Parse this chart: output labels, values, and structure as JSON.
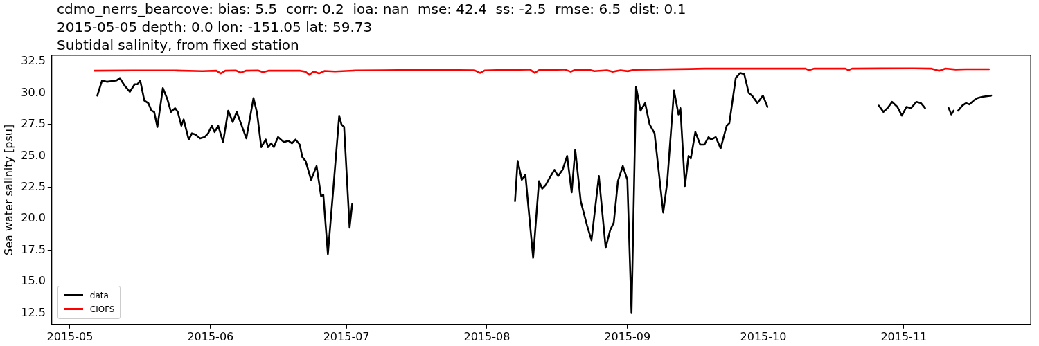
{
  "chart_data": {
    "type": "line",
    "title": "cdmo_nerrs_bearcove: bias: 5.5  corr: 0.2  ioa: nan  mse: 42.4  ss: -2.5  rmse: 6.5  dist: 0.1\n2015-05-05 depth: 0.0 lon: -151.05 lat: 59.73\nSubtidal salinity, from fixed station",
    "ylabel": "Sea water salinity [psu]",
    "xlim": [
      "2015-04-27",
      "2015-11-29"
    ],
    "xticks": [
      {
        "value": "2015-05-01",
        "label": "2015-05"
      },
      {
        "value": "2015-06-01",
        "label": "2015-06"
      },
      {
        "value": "2015-07-01",
        "label": "2015-07"
      },
      {
        "value": "2015-08-01",
        "label": "2015-08"
      },
      {
        "value": "2015-09-01",
        "label": "2015-09"
      },
      {
        "value": "2015-10-01",
        "label": "2015-10"
      },
      {
        "value": "2015-11-01",
        "label": "2015-11"
      }
    ],
    "ylim": [
      11.6,
      33.0
    ],
    "yticks": [
      12.5,
      {
        "value": 15,
        "label": "15.0"
      },
      17.5,
      {
        "value": 20,
        "label": "20.0"
      },
      22.5,
      {
        "value": 25,
        "label": "25.0"
      },
      27.5,
      {
        "value": 30,
        "label": "30.0"
      },
      32.5
    ],
    "grid": false,
    "legend": "bottom left",
    "line_style": "solid",
    "series": [
      {
        "name": "data",
        "color": "#000000",
        "x": [
          "2015-05-07T01:00",
          "2015-05-08T02:00",
          "2015-05-09T05:00",
          "2015-05-11T07:00",
          "2015-05-12T00:00",
          "2015-05-13T01:00",
          "2015-05-14T05:00",
          "2015-05-15T07:00",
          "2015-05-15T22:00",
          "2015-05-16T12:00",
          "2015-05-17T10:00",
          "2015-05-18T07:00",
          "2015-05-19T00:00",
          "2015-05-19T14:00",
          "2015-05-20T07:00",
          "2015-05-21T12:00",
          "2015-05-22T12:00",
          "2015-05-23T07:00",
          "2015-05-24T05:00",
          "2015-05-24T19:00",
          "2015-05-25T14:00",
          "2015-05-26T02:00",
          "2015-05-27T05:00",
          "2015-05-27T22:00",
          "2015-05-28T17:00",
          "2015-05-29T17:00",
          "2015-05-30T17:00",
          "2015-05-31T12:00",
          "2015-06-01T07:00",
          "2015-06-01T22:00",
          "2015-06-02T17:00",
          "2015-06-03T19:00",
          "2015-06-04T22:00",
          "2015-06-05T22:00",
          "2015-06-06T19:00",
          "2015-06-07T17:00",
          "2015-06-08T22:00",
          "2015-06-10T12:00",
          "2015-06-11T07:00",
          "2015-06-12T05:00",
          "2015-06-13T05:00",
          "2015-06-13T17:00",
          "2015-06-14T10:00",
          "2015-06-15T00:00",
          "2015-06-15T22:00",
          "2015-06-17T05:00",
          "2015-06-18T05:00",
          "2015-06-19T00:00",
          "2015-06-19T19:00",
          "2015-06-20T17:00",
          "2015-06-21T07:00",
          "2015-06-22T00:00",
          "2015-06-23T05:00",
          "2015-06-24T10:00",
          "2015-06-25T10:00",
          "2015-06-25T22:00",
          "2015-06-26T22:00",
          "2015-06-28T05:00",
          "2015-06-29T10:00",
          "2015-06-29T22:00",
          "2015-06-30T12:00",
          "2015-07-01T17:00",
          "2015-07-02T07:00",
          "2015-07-20T00:00",
          "2015-08-07T05:00",
          "2015-08-07T19:00",
          "2015-08-08T17:00",
          "2015-08-09T12:00",
          "2015-08-11T05:00",
          "2015-08-12T12:00",
          "2015-08-13T05:00",
          "2015-08-14T00:00",
          "2015-08-14T22:00",
          "2015-08-15T22:00",
          "2015-08-16T17:00",
          "2015-08-17T17:00",
          "2015-08-18T17:00",
          "2015-08-19T17:00",
          "2015-08-20T12:00",
          "2015-08-21T17:00",
          "2015-08-23T02:00",
          "2015-08-24T02:00",
          "2015-08-25T17:00",
          "2015-08-27T05:00",
          "2015-08-28T05:00",
          "2015-08-29T00:00",
          "2015-08-29T22:00",
          "2015-08-31T00:00",
          "2015-09-01T00:00",
          "2015-09-01T22:00",
          "2015-09-02T22:00",
          "2015-09-03T22:00",
          "2015-09-04T22:00",
          "2015-09-05T22:00",
          "2015-09-07T00:00",
          "2015-09-08T22:00",
          "2015-09-09T19:00",
          "2015-09-11T07:00",
          "2015-09-12T07:00",
          "2015-09-12T17:00",
          "2015-09-13T17:00",
          "2015-09-14T12:00",
          "2015-09-15T00:00",
          "2015-09-16T00:00",
          "2015-09-17T02:00",
          "2015-09-18T00:00",
          "2015-09-18T22:00",
          "2015-09-19T12:00",
          "2015-09-20T12:00",
          "2015-09-21T14:00",
          "2015-09-22T22:00",
          "2015-09-23T12:00",
          "2015-09-24T22:00",
          "2015-09-25T22:00",
          "2015-09-26T19:00",
          "2015-09-27T19:00",
          "2015-09-28T12:00",
          "2015-09-29T17:00",
          "2015-09-30T22:00",
          "2015-10-01T22:00",
          "2015-10-15T00:00",
          "2015-10-26T12:00",
          "2015-10-27T12:00",
          "2015-10-28T10:00",
          "2015-10-29T10:00",
          "2015-10-30T14:00",
          "2015-10-31T14:00",
          "2015-11-01T14:00",
          "2015-11-02T14:00",
          "2015-11-03T19:00",
          "2015-11-04T19:00",
          "2015-11-05T17:00",
          "2015-11-08T00:00",
          "2015-11-10T22:00",
          "2015-11-11T12:00",
          "2015-11-12T00:00",
          "2015-11-12T12:00",
          "2015-11-13T00:00",
          "2015-11-13T22:00",
          "2015-11-14T17:00",
          "2015-11-15T12:00",
          "2015-11-16T10:00",
          "2015-11-17T07:00",
          "2015-11-18T07:00",
          "2015-11-20T07:00"
        ],
        "values": [
          29.8,
          31.0,
          30.9,
          31.0,
          31.2,
          30.6,
          30.1,
          30.7,
          30.7,
          31.0,
          29.4,
          29.2,
          28.6,
          28.5,
          27.3,
          30.4,
          29.5,
          28.5,
          28.8,
          28.5,
          27.4,
          27.9,
          26.3,
          26.8,
          26.7,
          26.4,
          26.5,
          26.8,
          27.4,
          26.9,
          27.4,
          26.1,
          28.6,
          27.7,
          28.5,
          27.6,
          26.4,
          29.6,
          28.4,
          25.7,
          26.3,
          25.7,
          26.0,
          25.7,
          26.5,
          26.1,
          26.2,
          26.0,
          26.3,
          25.9,
          24.9,
          24.6,
          23.1,
          24.2,
          21.8,
          21.9,
          17.2,
          22.8,
          28.2,
          27.5,
          27.3,
          19.3,
          21.2,
          null,
          21.4,
          24.6,
          23.1,
          23.5,
          16.9,
          23.0,
          22.4,
          22.7,
          23.3,
          23.9,
          23.4,
          23.9,
          25.0,
          22.1,
          25.5,
          21.4,
          19.5,
          18.3,
          23.4,
          17.7,
          19.1,
          19.7,
          23.0,
          24.2,
          23.1,
          12.5,
          30.5,
          28.6,
          29.2,
          27.5,
          26.8,
          20.5,
          22.9,
          30.2,
          28.3,
          28.8,
          22.6,
          25.0,
          24.8,
          26.9,
          25.9,
          25.9,
          26.5,
          26.3,
          26.5,
          25.6,
          27.4,
          27.6,
          31.2,
          31.6,
          31.5,
          30.0,
          29.8,
          29.2,
          29.8,
          28.9,
          null,
          29.0,
          28.5,
          28.8,
          29.3,
          28.9,
          28.2,
          28.9,
          28.8,
          29.3,
          29.2,
          28.8,
          null,
          28.8,
          28.3,
          28.6,
          null,
          28.6,
          29.0,
          29.2,
          29.1,
          29.4,
          29.6,
          29.7,
          29.8
        ]
      },
      {
        "name": "CIOFS",
        "color": "#ff0000",
        "x": [
          "2015-05-06T10:00",
          "2015-05-14T19:00",
          "2015-05-24T02:00",
          "2015-05-30T05:00",
          "2015-06-02T07:00",
          "2015-06-03T07:00",
          "2015-06-04T07:00",
          "2015-06-06T14:00",
          "2015-06-07T17:00",
          "2015-06-08T19:00",
          "2015-06-11T12:00",
          "2015-06-12T14:00",
          "2015-06-13T19:00",
          "2015-06-20T19:00",
          "2015-06-22T00:00",
          "2015-06-22T19:00",
          "2015-06-23T19:00",
          "2015-06-25T00:00",
          "2015-06-26T05:00",
          "2015-06-28T12:00",
          "2015-07-03T02:00",
          "2015-07-09T05:00",
          "2015-07-18T12:00",
          "2015-07-29T05:00",
          "2015-07-30T12:00",
          "2015-07-31T12:00",
          "2015-08-05T22:00",
          "2015-08-10T12:00",
          "2015-08-11T14:00",
          "2015-08-12T12:00",
          "2015-08-18T05:00",
          "2015-08-19T12:00",
          "2015-08-20T12:00",
          "2015-08-23T14:00",
          "2015-08-24T17:00",
          "2015-08-27T12:00",
          "2015-08-28T17:00",
          "2015-08-30T12:00",
          "2015-09-01T02:00",
          "2015-09-02T14:00",
          "2015-09-14T22:00",
          "2015-09-18T00:00",
          "2015-09-30T07:00",
          "2015-10-10T07:00",
          "2015-10-11T02:00",
          "2015-10-12T07:00",
          "2015-10-19T02:00",
          "2015-10-19T19:00",
          "2015-10-20T14:00",
          "2015-11-03T05:00",
          "2015-11-07T00:00",
          "2015-11-08T19:00",
          "2015-11-10T05:00",
          "2015-11-12T10:00",
          "2015-11-14T17:00",
          "2015-11-19T19:00"
        ],
        "values": [
          31.78,
          31.8,
          31.8,
          31.75,
          31.78,
          31.56,
          31.78,
          31.8,
          31.63,
          31.78,
          31.8,
          31.67,
          31.78,
          31.78,
          31.7,
          31.45,
          31.72,
          31.56,
          31.76,
          31.72,
          31.8,
          31.82,
          31.85,
          31.82,
          31.6,
          31.8,
          31.85,
          31.88,
          31.6,
          31.83,
          31.88,
          31.7,
          31.86,
          31.86,
          31.75,
          31.82,
          31.7,
          31.82,
          31.74,
          31.86,
          31.92,
          31.95,
          31.95,
          31.95,
          31.83,
          31.95,
          31.95,
          31.83,
          31.95,
          31.97,
          31.95,
          31.78,
          31.95,
          31.88,
          31.9,
          31.9
        ]
      }
    ]
  }
}
